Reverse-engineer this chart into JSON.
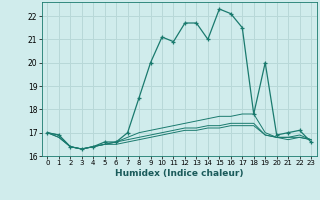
{
  "xlabel": "Humidex (Indice chaleur)",
  "ylabel": "",
  "bg_color": "#d0ecec",
  "grid_color": "#b8d8d8",
  "line_color": "#1a7a6e",
  "xlim": [
    -0.5,
    23.5
  ],
  "ylim": [
    16,
    22.6
  ],
  "yticks": [
    16,
    17,
    18,
    19,
    20,
    21,
    22
  ],
  "xticks": [
    0,
    1,
    2,
    3,
    4,
    5,
    6,
    7,
    8,
    9,
    10,
    11,
    12,
    13,
    14,
    15,
    16,
    17,
    18,
    19,
    20,
    21,
    22,
    23
  ],
  "series": [
    [
      17.0,
      16.9,
      16.4,
      16.3,
      16.4,
      16.6,
      16.6,
      17.0,
      18.5,
      20.0,
      21.1,
      20.9,
      21.7,
      21.7,
      21.0,
      22.3,
      22.1,
      21.5,
      17.8,
      20.0,
      16.9,
      17.0,
      17.1,
      16.6
    ],
    [
      17.0,
      16.9,
      16.4,
      16.3,
      16.4,
      16.5,
      16.6,
      16.8,
      17.0,
      17.1,
      17.2,
      17.3,
      17.4,
      17.5,
      17.6,
      17.7,
      17.7,
      17.8,
      17.8,
      17.0,
      16.8,
      16.8,
      16.9,
      16.7
    ],
    [
      17.0,
      16.8,
      16.4,
      16.3,
      16.4,
      16.5,
      16.6,
      16.7,
      16.8,
      16.9,
      17.0,
      17.1,
      17.2,
      17.2,
      17.3,
      17.3,
      17.4,
      17.4,
      17.4,
      16.9,
      16.8,
      16.8,
      16.8,
      16.7
    ],
    [
      17.0,
      16.8,
      16.4,
      16.3,
      16.4,
      16.5,
      16.5,
      16.6,
      16.7,
      16.8,
      16.9,
      17.0,
      17.1,
      17.1,
      17.2,
      17.2,
      17.3,
      17.3,
      17.3,
      16.9,
      16.8,
      16.7,
      16.8,
      16.7
    ]
  ]
}
